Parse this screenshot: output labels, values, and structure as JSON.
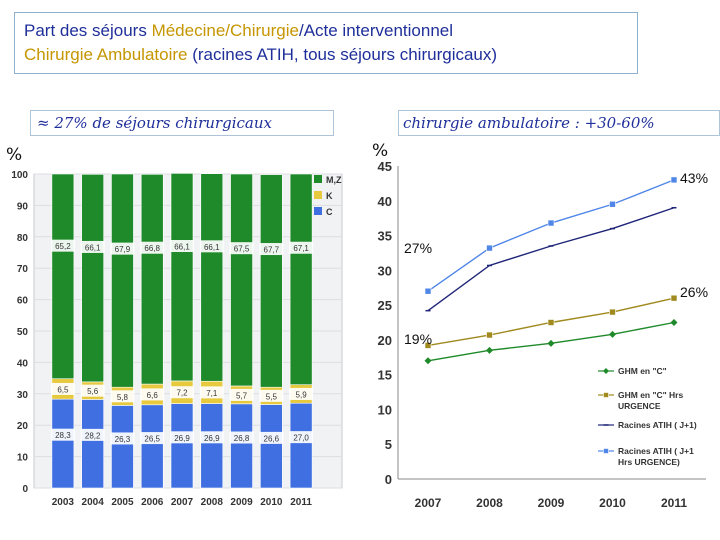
{
  "title": {
    "line1_part1": "Part des séjours ",
    "line1_part2": "Médecine/Chirurgie",
    "line1_part3": "/Acte interventionnel",
    "line2_part1": "Chirurgie Ambulatoire",
    "line2_part2": " (racines ATIH, tous séjours chirurgicaux)"
  },
  "captions": {
    "left": "≈ 27% de séjours chirurgicaux",
    "right": "chirurgie ambulatoire : +30-60%"
  },
  "colors": {
    "green": "#1f8a2a",
    "yellow": "#e7c93e",
    "blue": "#3f6fe0",
    "olive": "#a08a1e",
    "navy": "#1e2478",
    "lightblue": "#4f86e8"
  },
  "chart_data": [
    {
      "type": "bar",
      "stacked": true,
      "unit_label": "%",
      "categories": [
        "2003",
        "2004",
        "2005",
        "2006",
        "2007",
        "2008",
        "2009",
        "2010",
        "2011"
      ],
      "ylim": [
        0,
        100
      ],
      "yticks": [
        0,
        10,
        20,
        30,
        40,
        50,
        60,
        70,
        80,
        90,
        100
      ],
      "series": [
        {
          "name": "C",
          "values": [
            28.3,
            28.2,
            26.3,
            26.5,
            26.9,
            26.9,
            26.8,
            26.6,
            27.0
          ],
          "labels": [
            "28,3",
            "28,2",
            "26,3",
            "26,5",
            "26,9",
            "26,9",
            "26,8",
            "26,6",
            "27,0"
          ]
        },
        {
          "name": "K",
          "values": [
            6.5,
            5.6,
            5.8,
            6.6,
            7.2,
            7.1,
            5.7,
            5.5,
            5.9
          ],
          "labels": [
            "6,5",
            "5,6",
            "5,8",
            "6,6",
            "7,2",
            "7,1",
            "5,7",
            "5,5",
            "5,9"
          ]
        },
        {
          "name": "M,Z",
          "values": [
            65.2,
            66.1,
            67.9,
            66.8,
            66.1,
            66.1,
            67.5,
            67.7,
            67.1
          ],
          "labels": [
            "65,2",
            "66,1",
            "67,9",
            "66,8",
            "66,1",
            "66,1",
            "67,5",
            "67,7",
            "67,1"
          ]
        }
      ],
      "legend": [
        "M,Z",
        "K",
        "C"
      ],
      "legend_position": "top-right"
    },
    {
      "type": "line",
      "unit_label": "%",
      "categories": [
        "2007",
        "2008",
        "2009",
        "2010",
        "2011"
      ],
      "ylim": [
        0,
        45
      ],
      "yticks": [
        0,
        5,
        10,
        15,
        20,
        25,
        30,
        35,
        40,
        45
      ],
      "series": [
        {
          "name": "GHM en \"C\"",
          "values": [
            17.0,
            18.5,
            19.5,
            20.8,
            22.5
          ]
        },
        {
          "name": "GHM en \"C\" Hrs URGENCE",
          "values": [
            19.2,
            20.7,
            22.5,
            24.0,
            26.0
          ]
        },
        {
          "name": "Racines ATIH ( J+1)",
          "values": [
            24.2,
            30.7,
            33.5,
            36.0,
            39.0
          ]
        },
        {
          "name": "Racines ATIH ( J+1 Hrs URGENCE)",
          "values": [
            27.0,
            33.2,
            36.8,
            39.5,
            43.0
          ]
        }
      ],
      "legend_lines": [
        [
          "GHM en \"C\""
        ],
        [
          "GHM en \"C\" Hrs",
          "URGENCE"
        ],
        [
          "Racines ATIH ( J+1)"
        ],
        [
          "Racines ATIH ( J+1",
          "Hrs URGENCE)"
        ]
      ],
      "legend_position": "bottom-right",
      "annotations": [
        "43%",
        "26%",
        "27%",
        "19%"
      ]
    }
  ]
}
